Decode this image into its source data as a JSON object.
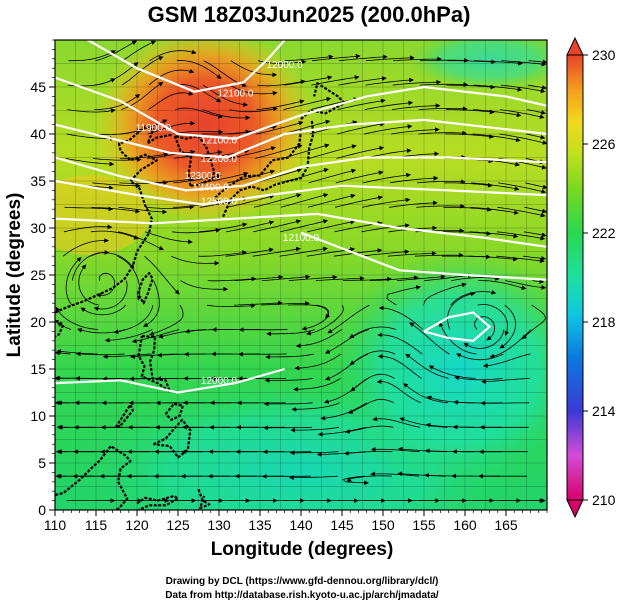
{
  "title": "GSM 18Z03Jun2025 (200.0hPa)",
  "x_axis": {
    "label": "Longitude (degrees)",
    "ticks": [
      "110",
      "115",
      "120",
      "125",
      "130",
      "135",
      "140",
      "145",
      "150",
      "155",
      "160",
      "165"
    ],
    "range": [
      110,
      170
    ]
  },
  "y_axis": {
    "label": "Latitude (degrees)",
    "ticks": [
      "0",
      "5",
      "10",
      "15",
      "20",
      "25",
      "30",
      "35",
      "40",
      "45"
    ],
    "range": [
      0,
      50
    ]
  },
  "colorbar": {
    "labels": [
      "230",
      "226",
      "222",
      "218",
      "214",
      "210"
    ],
    "range": [
      210,
      230
    ],
    "colors": [
      "#d6006b",
      "#d44cd6",
      "#3a3ad6",
      "#0a7ae0",
      "#10c8e0",
      "#1ee0a0",
      "#2ad850",
      "#7ad81e",
      "#c4e01e",
      "#f2d81e",
      "#f5a01e",
      "#ef6a1e",
      "#e8432b"
    ]
  },
  "contour_labels": [
    "11900.0",
    "12100.0",
    "12000.0",
    "12100.0",
    "12200.0",
    "12300.0",
    "12400.0",
    "12500.0",
    "12100.0",
    "12000.0"
  ],
  "credits": {
    "line1": "Drawing by DCL (https://www.gfd-dennou.org/library/dcl/)",
    "line2": "Data from http://database.rish.kyoto-u.ac.jp/arch/jmadata/"
  }
}
